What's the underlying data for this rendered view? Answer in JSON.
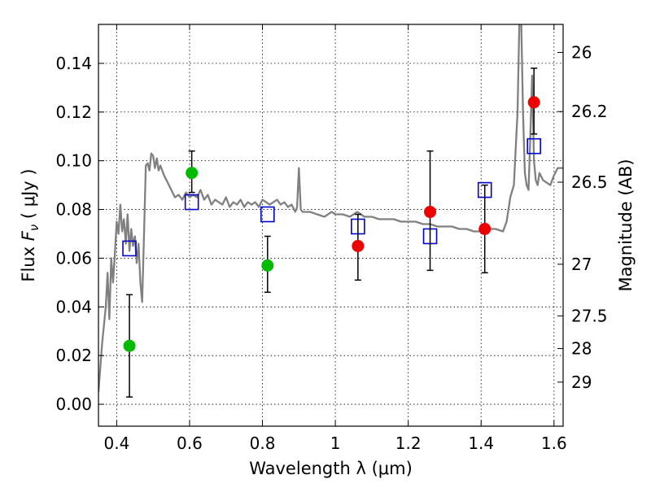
{
  "chart_data": {
    "type": "scatter",
    "xlabel": "Wavelength  λ (μm)",
    "ylabel": "Flux  F_ν  ( μJy )",
    "ylabel_right": "Magnitude (AB)",
    "xlim": [
      0.35,
      1.625
    ],
    "ylim": [
      -0.009,
      0.156
    ],
    "grid": true,
    "x_ticks": [
      0.4,
      0.6,
      0.8,
      1.0,
      1.2,
      1.4,
      1.6
    ],
    "x_tick_labels": [
      "0.4",
      "0.6",
      "0.8",
      "1",
      "1.2",
      "1.4",
      "1.6"
    ],
    "y_ticks": [
      0.0,
      0.02,
      0.04,
      0.06,
      0.08,
      0.1,
      0.12,
      0.14
    ],
    "y_tick_labels": [
      "0.00",
      "0.02",
      "0.04",
      "0.06",
      "0.08",
      "0.10",
      "0.12",
      "0.14"
    ],
    "right_ticks": [
      {
        "label": "26",
        "flux": 0.1445
      },
      {
        "label": "26.2",
        "flux": 0.1202
      },
      {
        "label": "26.5",
        "flux": 0.0912
      },
      {
        "label": "27",
        "flux": 0.0575
      },
      {
        "label": "27.5",
        "flux": 0.0363
      },
      {
        "label": "28",
        "flux": 0.0229
      },
      {
        "label": "29",
        "flux": 0.0091
      }
    ],
    "colors": {
      "green": "#00bb00",
      "red": "#ee0000",
      "blue": "#0000cc",
      "sed": "#808080"
    },
    "series": [
      {
        "marker": "circle",
        "color": "#00bb00",
        "points": [
          {
            "x": 0.435,
            "y": 0.024,
            "ylo": 0.003,
            "yhi": 0.045
          },
          {
            "x": 0.606,
            "y": 0.095,
            "ylo": 0.087,
            "yhi": 0.104
          },
          {
            "x": 0.814,
            "y": 0.057,
            "ylo": 0.046,
            "yhi": 0.069
          }
        ]
      },
      {
        "marker": "circle",
        "color": "#ee0000",
        "points": [
          {
            "x": 1.062,
            "y": 0.065,
            "ylo": 0.051,
            "yhi": 0.078
          },
          {
            "x": 1.26,
            "y": 0.079,
            "ylo": 0.055,
            "yhi": 0.104
          },
          {
            "x": 1.41,
            "y": 0.072,
            "ylo": 0.054,
            "yhi": 0.09
          },
          {
            "x": 1.545,
            "y": 0.124,
            "ylo": 0.111,
            "yhi": 0.138
          }
        ]
      },
      {
        "marker": "open-square",
        "color": "#0000cc",
        "points": [
          {
            "x": 0.435,
            "y": 0.064
          },
          {
            "x": 0.606,
            "y": 0.083
          },
          {
            "x": 0.814,
            "y": 0.078
          },
          {
            "x": 1.062,
            "y": 0.073
          },
          {
            "x": 1.26,
            "y": 0.069
          },
          {
            "x": 1.41,
            "y": 0.088
          },
          {
            "x": 1.545,
            "y": 0.106
          }
        ]
      },
      {
        "marker": "line",
        "color": "#808080",
        "x": [
          0.35,
          0.36,
          0.37,
          0.375,
          0.38,
          0.385,
          0.39,
          0.395,
          0.4,
          0.405,
          0.41,
          0.415,
          0.42,
          0.425,
          0.43,
          0.435,
          0.44,
          0.445,
          0.45,
          0.455,
          0.46,
          0.465,
          0.47,
          0.475,
          0.48,
          0.485,
          0.49,
          0.495,
          0.5,
          0.505,
          0.51,
          0.515,
          0.52,
          0.53,
          0.54,
          0.55,
          0.56,
          0.57,
          0.58,
          0.59,
          0.6,
          0.61,
          0.62,
          0.63,
          0.64,
          0.65,
          0.66,
          0.67,
          0.68,
          0.69,
          0.7,
          0.71,
          0.72,
          0.73,
          0.74,
          0.75,
          0.76,
          0.77,
          0.78,
          0.79,
          0.8,
          0.81,
          0.82,
          0.83,
          0.84,
          0.85,
          0.86,
          0.87,
          0.88,
          0.89,
          0.895,
          0.9,
          0.905,
          0.91,
          0.93,
          0.95,
          0.97,
          0.99,
          1.0,
          1.02,
          1.04,
          1.06,
          1.08,
          1.1,
          1.12,
          1.14,
          1.16,
          1.18,
          1.2,
          1.22,
          1.24,
          1.26,
          1.28,
          1.3,
          1.32,
          1.34,
          1.36,
          1.38,
          1.4,
          1.42,
          1.44,
          1.46,
          1.47,
          1.48,
          1.49,
          1.5,
          1.505,
          1.51,
          1.515,
          1.52,
          1.525,
          1.53,
          1.535,
          1.54,
          1.545,
          1.55,
          1.555,
          1.56,
          1.57,
          1.58,
          1.59,
          1.6,
          1.61,
          1.62,
          1.625
        ],
        "y": [
          0.005,
          0.025,
          0.04,
          0.054,
          0.035,
          0.06,
          0.05,
          0.062,
          0.075,
          0.07,
          0.082,
          0.071,
          0.076,
          0.066,
          0.078,
          0.063,
          0.072,
          0.065,
          0.069,
          0.058,
          0.066,
          0.05,
          0.042,
          0.07,
          0.098,
          0.099,
          0.096,
          0.103,
          0.102,
          0.097,
          0.101,
          0.096,
          0.098,
          0.094,
          0.091,
          0.088,
          0.085,
          0.086,
          0.084,
          0.087,
          0.085,
          0.086,
          0.085,
          0.088,
          0.084,
          0.086,
          0.082,
          0.084,
          0.083,
          0.082,
          0.085,
          0.081,
          0.083,
          0.082,
          0.084,
          0.081,
          0.083,
          0.082,
          0.083,
          0.081,
          0.084,
          0.083,
          0.082,
          0.083,
          0.084,
          0.082,
          0.083,
          0.081,
          0.082,
          0.079,
          0.081,
          0.097,
          0.08,
          0.079,
          0.079,
          0.078,
          0.077,
          0.079,
          0.078,
          0.078,
          0.077,
          0.079,
          0.077,
          0.077,
          0.076,
          0.076,
          0.076,
          0.075,
          0.075,
          0.075,
          0.074,
          0.074,
          0.073,
          0.073,
          0.073,
          0.072,
          0.072,
          0.071,
          0.071,
          0.072,
          0.072,
          0.071,
          0.075,
          0.085,
          0.09,
          0.12,
          0.158,
          0.158,
          0.12,
          0.095,
          0.09,
          0.088,
          0.11,
          0.135,
          0.1,
          0.092,
          0.09,
          0.095,
          0.092,
          0.091,
          0.09,
          0.094,
          0.097,
          0.097,
          0.097
        ]
      }
    ]
  }
}
